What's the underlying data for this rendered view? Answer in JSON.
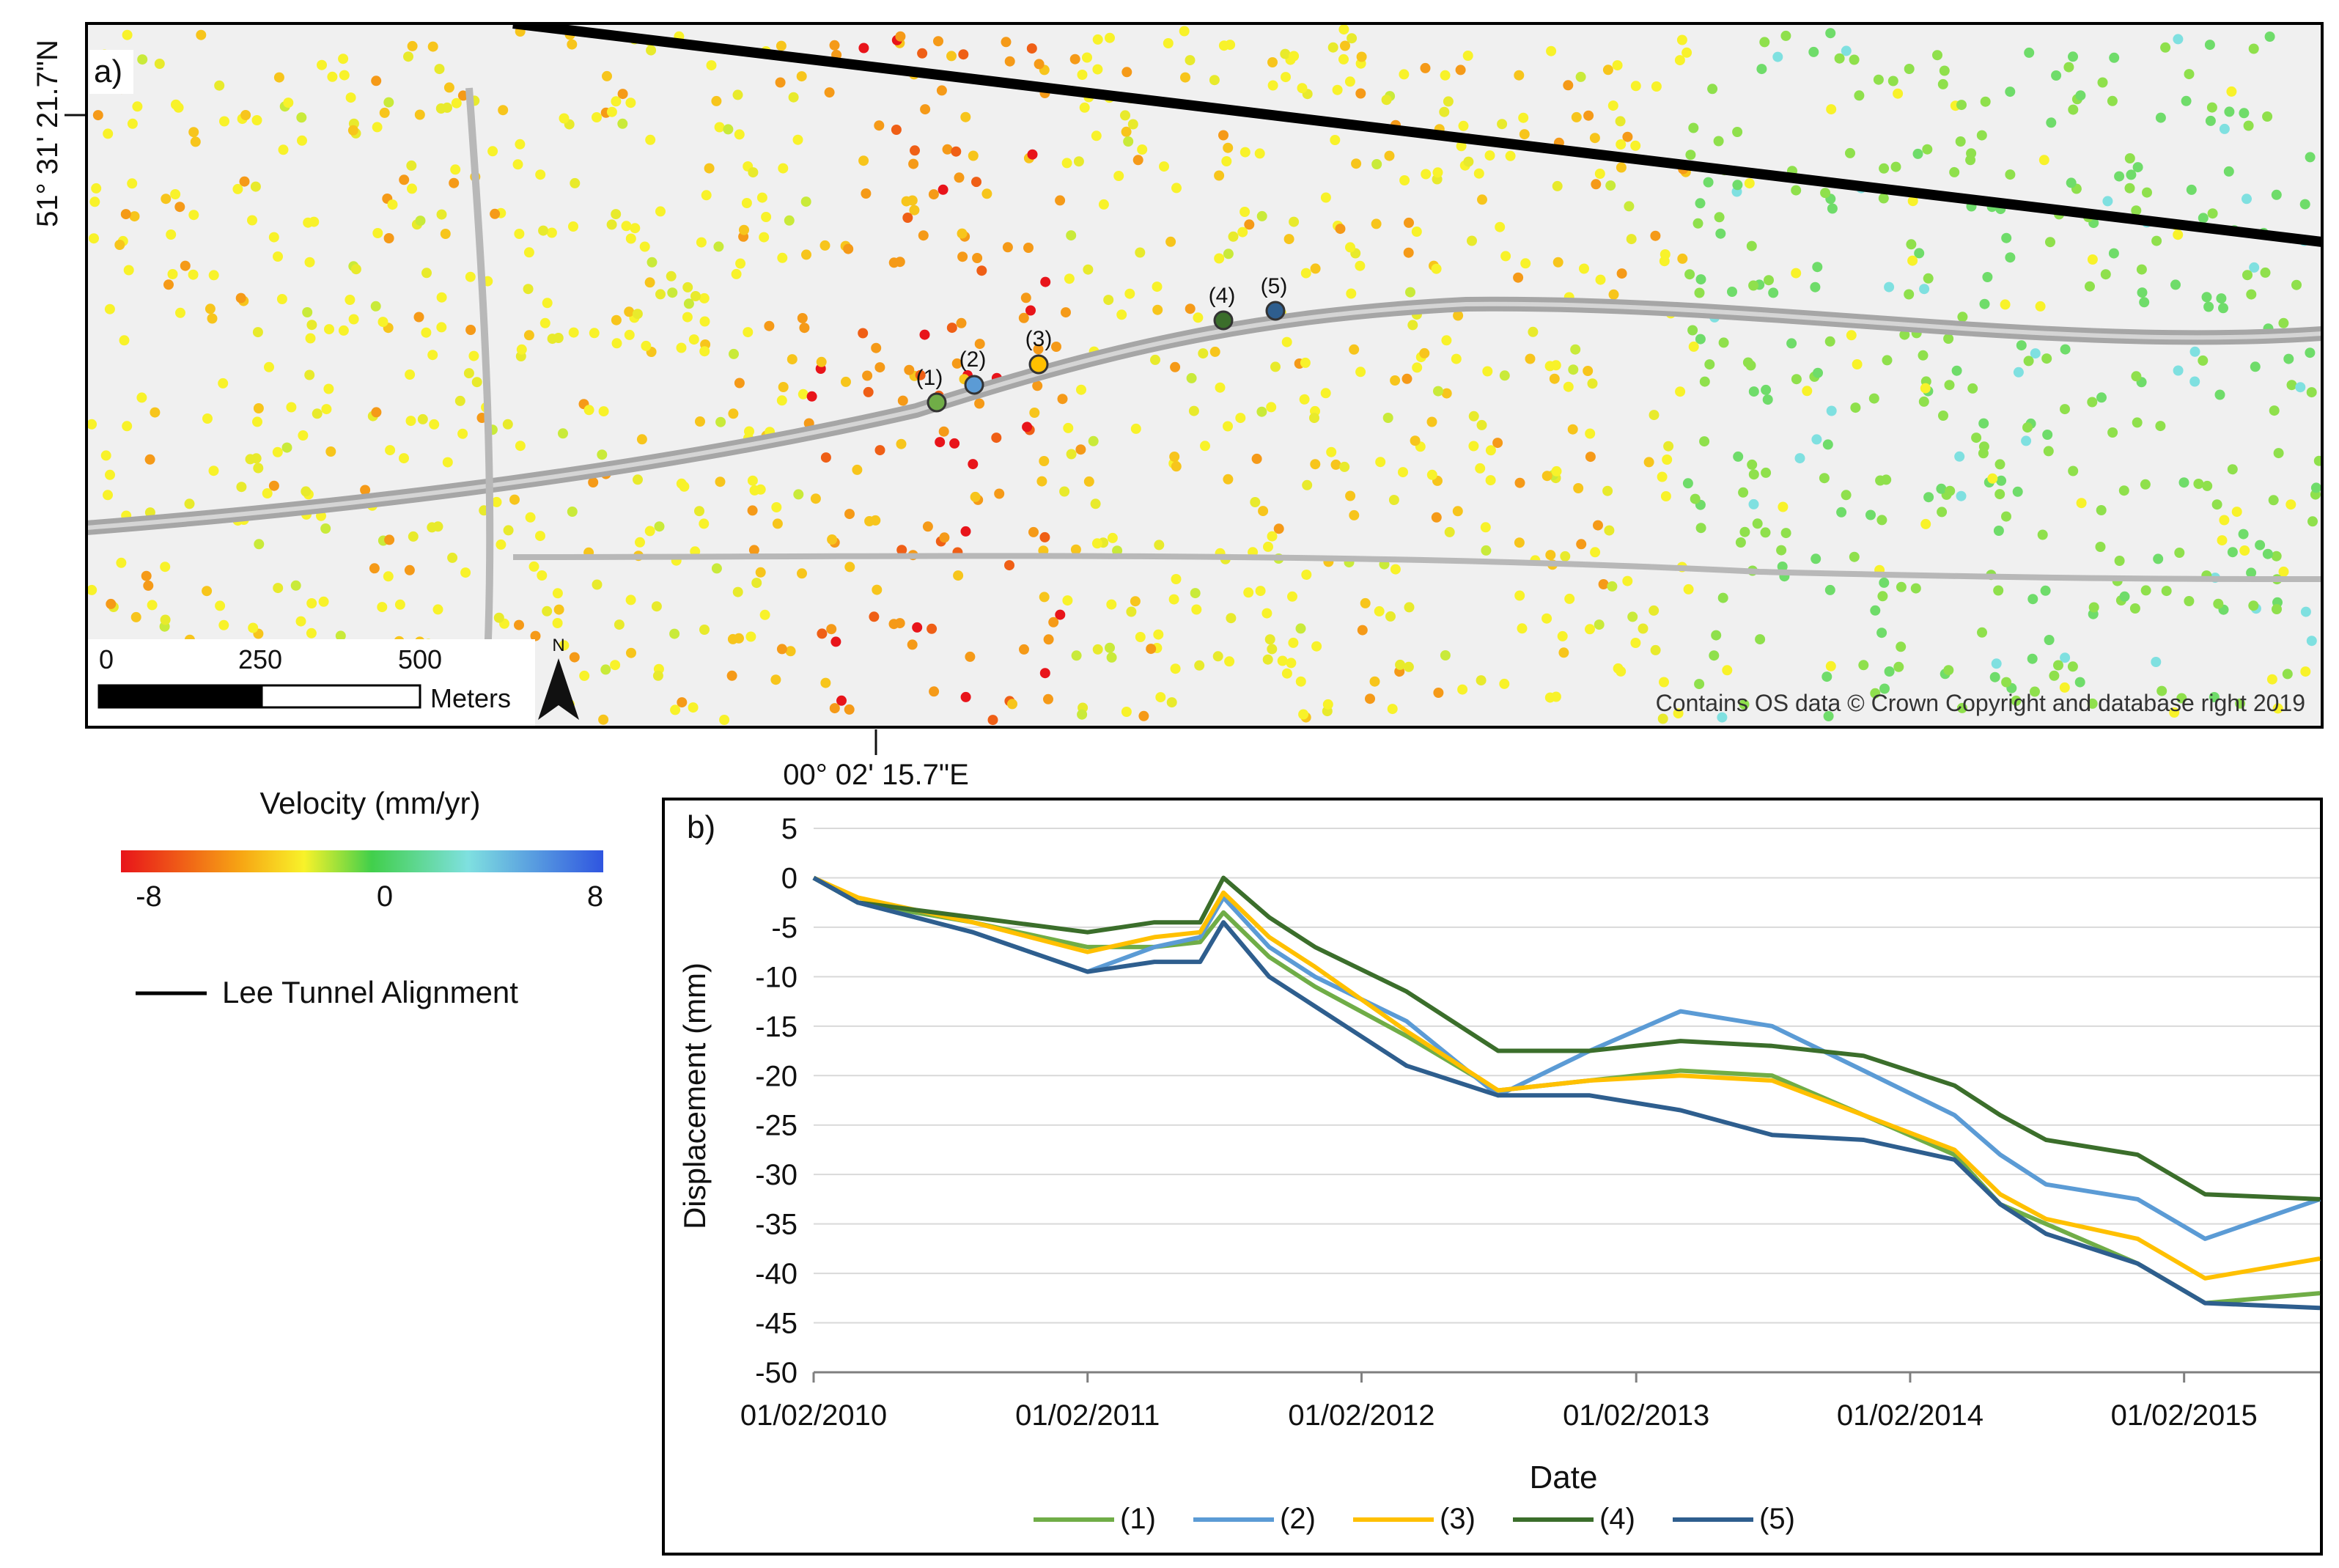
{
  "map": {
    "panel_label": "a)",
    "lat_label": "51° 31' 21.7\"N",
    "lon_label": "00° 02' 15.7\"E",
    "scale": {
      "ticks": [
        "0",
        "250",
        "500"
      ],
      "unit": "Meters"
    },
    "north": "N",
    "credit": "Contains OS data © Crown Copyright and database right 2019",
    "point_labels": [
      "(1)",
      "(2)",
      "(3)",
      "(4)",
      "(5)"
    ]
  },
  "legend": {
    "velocity_title": "Velocity (mm/yr)",
    "velocity_ticks": [
      "-8",
      "0",
      "8"
    ],
    "tunnel_label": "Lee Tunnel Alignment"
  },
  "colors": {
    "s1": "#70ad47",
    "s2": "#5b9bd5",
    "s3": "#ffc000",
    "s4": "#3b6e2b",
    "s5": "#2e5e8e",
    "grid": "#d9d9d9",
    "road": "#a6a6a6",
    "map_bg": "#f0f0f0"
  },
  "chart_data": {
    "type": "line",
    "panel_label": "b)",
    "xlabel": "Date",
    "ylabel": "Displacement (mm)",
    "ylim": [
      -50,
      5
    ],
    "yticks": [
      "5",
      "0",
      "-5",
      "-10",
      "-15",
      "-20",
      "-25",
      "-30",
      "-35",
      "-40",
      "-45",
      "-50"
    ],
    "xlim": [
      "01/02/2010",
      "01/08/2015"
    ],
    "xticks": [
      "01/02/2010",
      "01/02/2011",
      "01/02/2012",
      "01/02/2013",
      "01/02/2014",
      "01/02/2015"
    ],
    "x": [
      "01/02/2010",
      "01/04/2010",
      "01/09/2010",
      "01/02/2011",
      "01/05/2011",
      "01/07/2011",
      "01/08/2011",
      "01/10/2011",
      "01/12/2011",
      "01/04/2012",
      "01/08/2012",
      "01/12/2012",
      "01/04/2013",
      "01/08/2013",
      "01/12/2013",
      "01/04/2014",
      "01/06/2014",
      "01/08/2014",
      "01/12/2014",
      "01/03/2015",
      "01/08/2015"
    ],
    "series": [
      {
        "name": "(1)",
        "values": [
          0,
          -2.5,
          -4.5,
          -7,
          -7,
          -6.5,
          -3.5,
          -8,
          -11,
          -16,
          -21.5,
          -20.5,
          -19.5,
          -20,
          -24,
          -28,
          -33,
          -35,
          -39,
          -43,
          -42
        ]
      },
      {
        "name": "(2)",
        "values": [
          0,
          -2.5,
          -5.5,
          -9.5,
          -7,
          -6,
          -2,
          -7,
          -10,
          -14.5,
          -22,
          -17.5,
          -13.5,
          -15,
          -19.5,
          -24,
          -28,
          -31,
          -32.5,
          -36.5,
          -32.5
        ]
      },
      {
        "name": "(3)",
        "values": [
          0,
          -2,
          -4.5,
          -7.5,
          -6,
          -5.5,
          -1.5,
          -6,
          -9,
          -15.5,
          -21.5,
          -20.5,
          -20,
          -20.5,
          -24,
          -27.5,
          -32,
          -34.5,
          -36.5,
          -40.5,
          -38.5
        ]
      },
      {
        "name": "(4)",
        "values": [
          0,
          -2.5,
          -4,
          -5.5,
          -4.5,
          -4.5,
          0,
          -4,
          -7,
          -11.5,
          -17.5,
          -17.5,
          -16.5,
          -17,
          -18,
          -21,
          -24,
          -26.5,
          -28,
          -32,
          -32.5
        ]
      },
      {
        "name": "(5)",
        "values": [
          0,
          -2.5,
          -5.5,
          -9.5,
          -8.5,
          -8.5,
          -4.5,
          -10,
          -13,
          -19,
          -22,
          -22,
          -23.5,
          -26,
          -26.5,
          -28.5,
          -33,
          -36,
          -39,
          -43,
          -43.5
        ]
      }
    ],
    "legend_position": "bottom",
    "grid": true
  }
}
